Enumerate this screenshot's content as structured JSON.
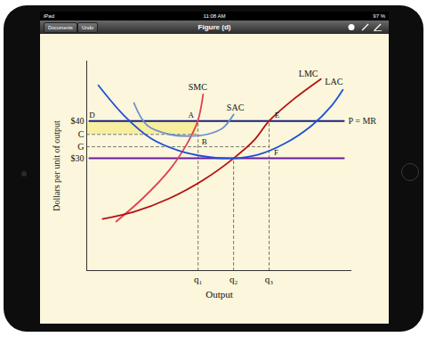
{
  "device": {
    "status": {
      "left": "iPad",
      "center": "11:08 AM",
      "right": "97 %"
    },
    "toolbar": {
      "buttons": [
        "Documents",
        "Undo"
      ],
      "title": "Figure (d)"
    }
  },
  "chart_data": {
    "type": "line",
    "xlabel": "Output",
    "ylabel": "Dollars per unit of output",
    "xlim": [
      0,
      100
    ],
    "ylim": [
      0,
      56
    ],
    "xticks": [
      {
        "value": 42,
        "label": "q₁"
      },
      {
        "value": 55.4,
        "label": "q₂"
      },
      {
        "value": 68.8,
        "label": "q₃"
      }
    ],
    "yticks": [
      {
        "value": 30,
        "label": "$30"
      },
      {
        "value": 33.1,
        "label": "G"
      },
      {
        "value": 36.4,
        "label": "C"
      },
      {
        "value": 40,
        "label": "$40"
      }
    ],
    "tick_labels": true,
    "series": [
      {
        "name": "SMC",
        "color": "#e2404f",
        "x": [
          11.1,
          21.1,
          31.2,
          37.9,
          41.9,
          43.9
        ],
        "values": [
          13.1,
          19.3,
          26.9,
          34.0,
          40,
          47.1
        ]
      },
      {
        "name": "SAC",
        "color": "#6b8fcb",
        "x": [
          17.8,
          22.8,
          31.2,
          38.6,
          45.3,
          51.3,
          55.4
        ],
        "values": [
          44.8,
          38.8,
          36.4,
          35.95,
          36.4,
          38.1,
          41.7
        ]
      },
      {
        "name": "LMC",
        "color": "#b80f0f",
        "x": [
          6,
          17.8,
          31.2,
          44.6,
          55.4,
          63.1,
          68.8,
          78.2,
          88.3
        ],
        "values": [
          13.8,
          15.7,
          19.3,
          24.5,
          30,
          34.8,
          40,
          45.9,
          51.2
        ]
      },
      {
        "name": "LAC",
        "color": "#1f4fd8",
        "x": [
          4.4,
          14.4,
          24.5,
          34.6,
          44.6,
          55.4,
          64.8,
          74.8,
          84.9,
          92.3,
          96.6
        ],
        "values": [
          49.5,
          41.2,
          35.2,
          32.1,
          30.5,
          30,
          31,
          34,
          38.8,
          44,
          48.3
        ]
      }
    ],
    "hlines": [
      {
        "label": "P = MR",
        "y": 40,
        "x": [
          1,
          97
        ],
        "color": "#1a237e"
      },
      {
        "y": 30,
        "x": [
          1,
          97
        ],
        "color": "#6a1b9a"
      }
    ],
    "guides": {
      "color": "#555555",
      "line_style": "dashed",
      "lines": [
        {
          "x": [
            0,
            42
          ],
          "y": [
            36.4,
            36.4
          ]
        },
        {
          "x": [
            0,
            68.8
          ],
          "y": [
            33.1,
            33.1
          ]
        },
        {
          "x": [
            42,
            42
          ],
          "y": [
            0,
            40
          ]
        },
        {
          "x": [
            55.4,
            55.4
          ],
          "y": [
            0,
            30
          ]
        },
        {
          "x": [
            68.8,
            68.8
          ],
          "y": [
            0,
            40
          ]
        }
      ]
    },
    "shaded": {
      "x": [
        0,
        42
      ],
      "y": [
        36.4,
        40
      ],
      "color": "#f7eea0"
    },
    "points": [
      {
        "label": "D",
        "x": 0,
        "y": 40
      },
      {
        "label": "A",
        "x": 42,
        "y": 40
      },
      {
        "label": "B",
        "x": 42,
        "y": 36.4
      },
      {
        "label": "E",
        "x": 68.8,
        "y": 40
      },
      {
        "label": "F",
        "x": 68.8,
        "y": 30
      }
    ]
  }
}
